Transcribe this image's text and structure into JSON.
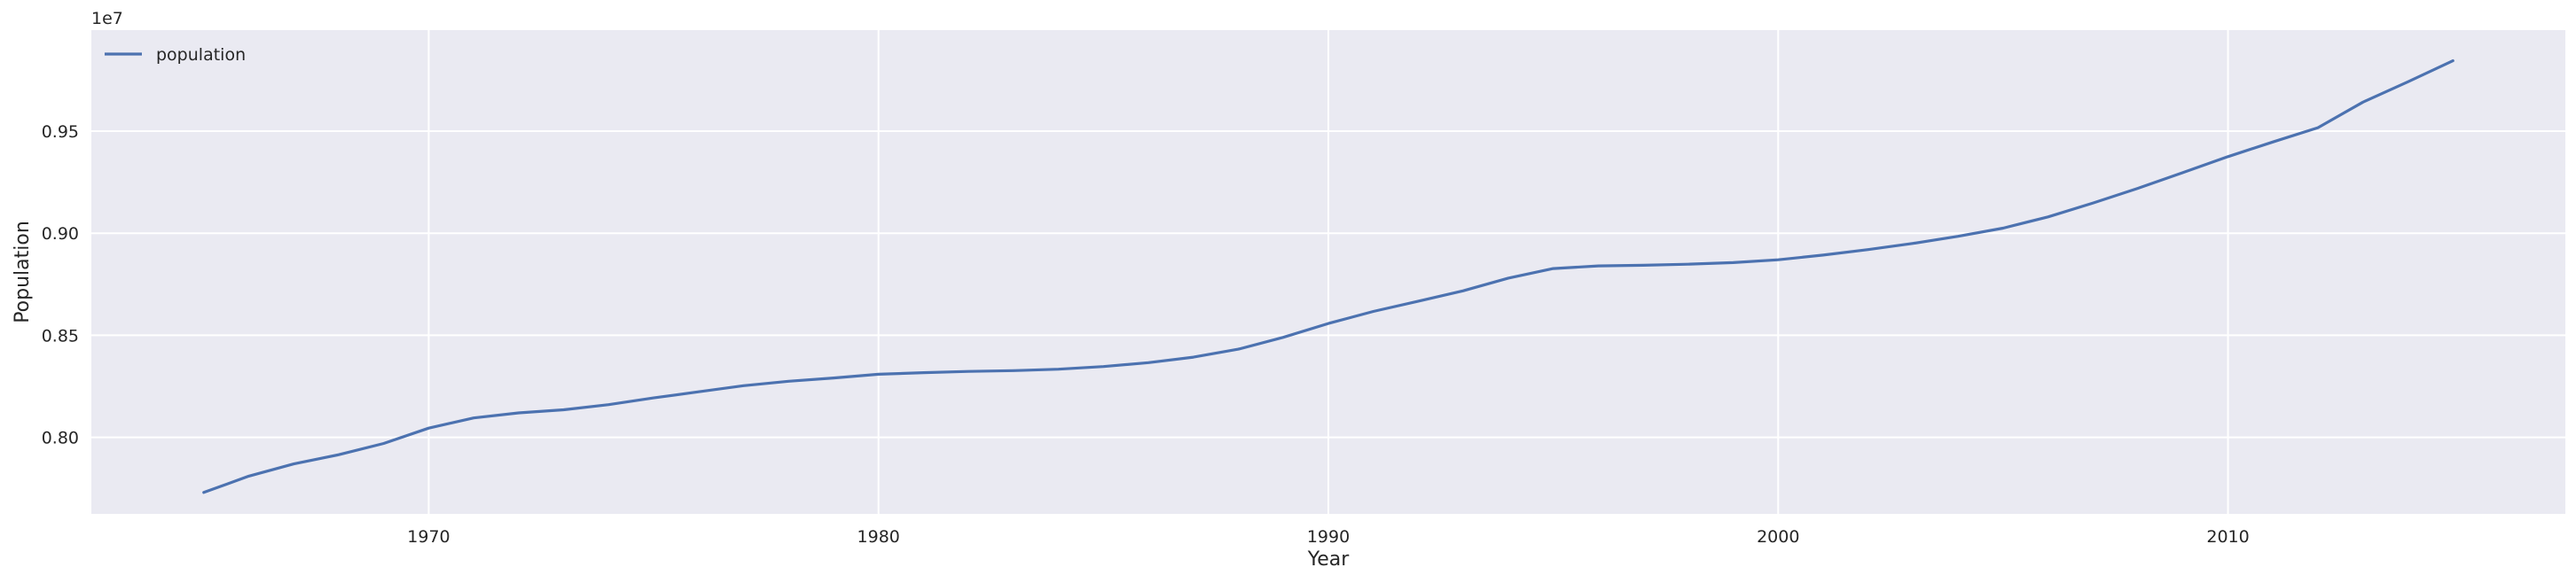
{
  "chart_data": {
    "type": "line",
    "xlabel": "Year",
    "ylabel": "Population",
    "y_offset_text": "1e7",
    "xlim": [
      1962.5,
      2017.5
    ],
    "ylim": [
      7.625,
      9.995
    ],
    "x_ticks": [
      1970,
      1980,
      1990,
      2000,
      2010
    ],
    "y_ticks": [
      0.8,
      0.85,
      0.9,
      0.95
    ],
    "y_tick_labels": [
      "0.80",
      "0.85",
      "0.90",
      "0.95"
    ],
    "grid": true,
    "legend_position": "top-left",
    "colors": {
      "background": "#EAEAF2",
      "grid": "#FFFFFF",
      "line": "#4C72B0"
    },
    "series": [
      {
        "name": "population",
        "x": [
          1965,
          1966,
          1967,
          1968,
          1969,
          1970,
          1971,
          1972,
          1973,
          1974,
          1975,
          1976,
          1977,
          1978,
          1979,
          1980,
          1981,
          1982,
          1983,
          1984,
          1985,
          1986,
          1987,
          1988,
          1989,
          1990,
          1991,
          1992,
          1993,
          1994,
          1995,
          1996,
          1997,
          1998,
          1999,
          2000,
          2001,
          2002,
          2003,
          2004,
          2005,
          2006,
          2007,
          2008,
          2009,
          2010,
          2011,
          2012,
          2013,
          2014,
          2015
        ],
        "values": [
          7.73,
          7.81,
          7.87,
          7.915,
          7.97,
          8.045,
          8.095,
          8.12,
          8.135,
          8.16,
          8.193,
          8.223,
          8.253,
          8.275,
          8.291,
          8.309,
          8.317,
          8.323,
          8.327,
          8.334,
          8.347,
          8.366,
          8.393,
          8.432,
          8.49,
          8.558,
          8.617,
          8.667,
          8.718,
          8.78,
          8.827,
          8.84,
          8.843,
          8.848,
          8.856,
          8.87,
          8.893,
          8.92,
          8.95,
          8.985,
          9.025,
          9.08,
          9.148,
          9.22,
          9.297,
          9.375,
          9.447,
          9.517,
          9.642,
          9.742,
          9.845
        ]
      }
    ]
  }
}
